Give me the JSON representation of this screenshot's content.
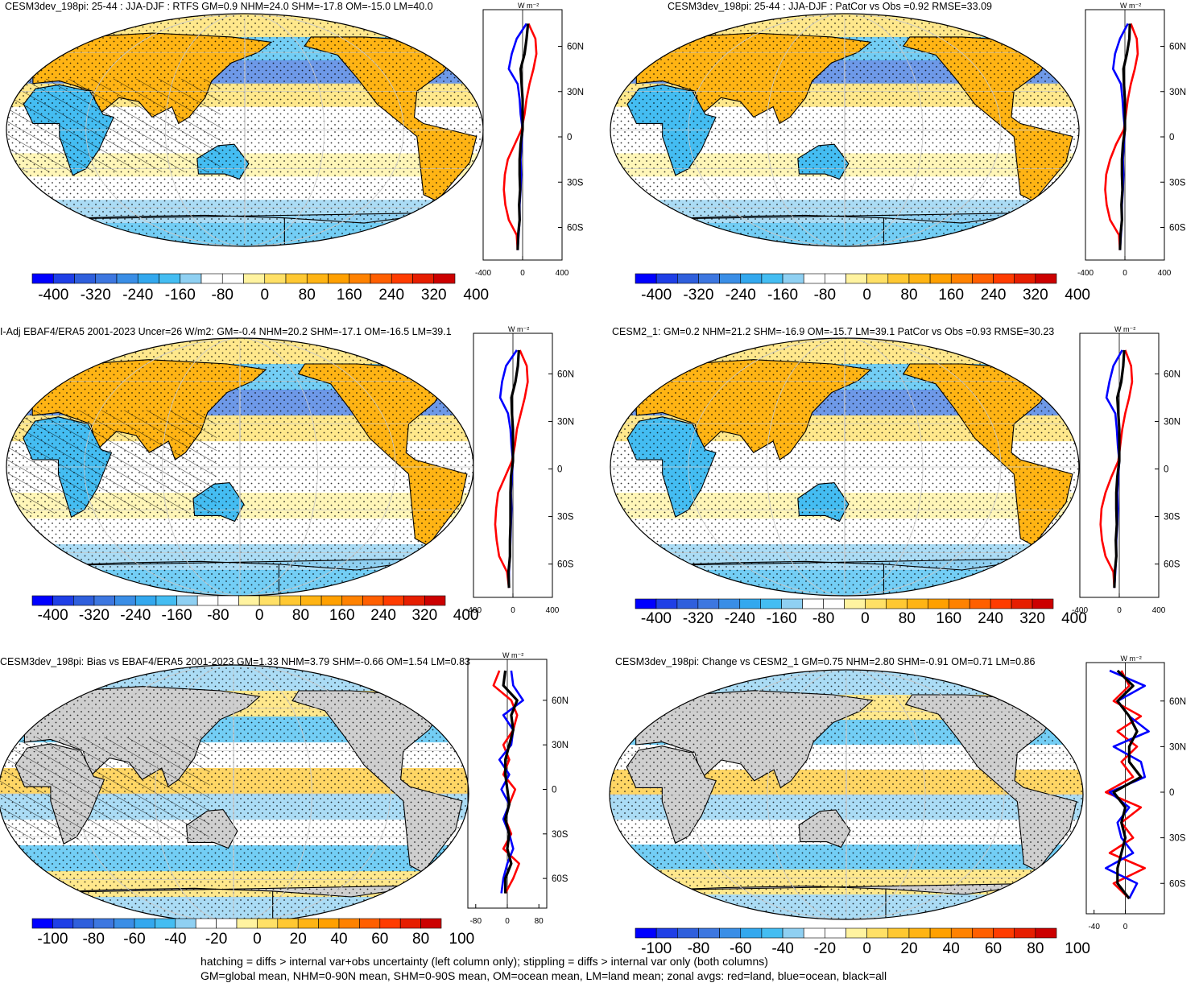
{
  "colors": {
    "ocean": "#ffffff",
    "land_masked": "#cfcfcf",
    "coast": "#000000",
    "zonal_land": "#ff0000",
    "zonal_ocean": "#0000ff",
    "zonal_all": "#000000",
    "colorbar": [
      "#0000ff",
      "#1f3fe6",
      "#2f5fdc",
      "#3d77e0",
      "#3a8ee6",
      "#33a8ee",
      "#44bdf2",
      "#8fd0f2",
      "#ffffff",
      "#ffffff",
      "#fff3a0",
      "#ffe066",
      "#ffc832",
      "#ffb414",
      "#ffa000",
      "#ff8200",
      "#ff5f00",
      "#ff3c00",
      "#e61e00",
      "#cc0000"
    ]
  },
  "panels": [
    {
      "id": "p1",
      "title": "CESM3dev_198pi: 25-44 : JJA-DJF : RTFS GM=0.9 NHM=24.0 SHM=-17.8 OM=-15.0 LM=40.0",
      "colorbar_ticks": [
        "-400",
        "-320",
        "-240",
        "-160",
        "-80",
        "0",
        "80",
        "160",
        "240",
        "320",
        "400"
      ],
      "zonal": {
        "unit": "W m⁻²",
        "xlim": [
          -400,
          400
        ],
        "xticks": [
          "-400",
          "0",
          "400"
        ],
        "lat_ticks": [
          "60N",
          "30N",
          "0",
          "30S",
          "60S"
        ],
        "lat": [
          75,
          65,
          55,
          45,
          35,
          25,
          15,
          5,
          -5,
          -15,
          -25,
          -35,
          -45,
          -55,
          -65,
          -75
        ],
        "land": [
          60,
          130,
          140,
          110,
          70,
          40,
          20,
          -10,
          -80,
          -150,
          -180,
          -190,
          -175,
          -140,
          -60,
          -50
        ],
        "ocean": [
          40,
          -60,
          -110,
          -140,
          -50,
          -30,
          -20,
          0,
          -10,
          -20,
          -15,
          -20,
          -30,
          -30,
          -40,
          -50
        ],
        "all": [
          55,
          40,
          20,
          -20,
          -10,
          0,
          0,
          0,
          -20,
          -30,
          -30,
          -25,
          -35,
          -30,
          -45,
          -50
        ]
      }
    },
    {
      "id": "p2",
      "title": "CESM3dev_198pi: 25-44 : JJA-DJF : PatCor vs Obs =0.92 RMSE=33.09",
      "colorbar_ticks": [
        "-400",
        "-320",
        "-240",
        "-160",
        "-80",
        "0",
        "80",
        "160",
        "240",
        "320",
        "400"
      ],
      "zonal": {
        "unit": "W m⁻²",
        "xlim": [
          -400,
          400
        ],
        "xticks": [
          "-400",
          "0",
          "400"
        ],
        "lat_ticks": [
          "60N",
          "30N",
          "0",
          "30S",
          "60S"
        ],
        "lat": [
          75,
          65,
          55,
          45,
          35,
          25,
          15,
          5,
          -5,
          -15,
          -25,
          -35,
          -45,
          -55,
          -65,
          -75
        ],
        "land": [
          60,
          120,
          130,
          100,
          60,
          30,
          10,
          -10,
          -90,
          -150,
          -190,
          -200,
          -185,
          -150,
          -60,
          -50
        ],
        "ocean": [
          30,
          -50,
          -100,
          -120,
          -40,
          -25,
          -15,
          0,
          -10,
          -20,
          -15,
          -20,
          -30,
          -30,
          -40,
          -50
        ],
        "all": [
          50,
          45,
          20,
          -15,
          -10,
          0,
          0,
          0,
          -20,
          -30,
          -30,
          -25,
          -35,
          -30,
          -45,
          -50
        ]
      }
    },
    {
      "id": "p3",
      "title": "I-Adj EBAF4/ERA5 2001-2023 Uncer=26 W/m2: GM=-0.4 NHM=20.2 SHM=-17.1 OM=-16.5 LM=39.1",
      "colorbar_ticks": [
        "-400",
        "-320",
        "-240",
        "-160",
        "-80",
        "0",
        "80",
        "160",
        "240",
        "320",
        "400"
      ],
      "zonal": {
        "unit": "W m⁻²",
        "xlim": [
          -400,
          400
        ],
        "xticks": [
          "-400",
          "0",
          "400"
        ],
        "lat_ticks": [
          "60N",
          "30N",
          "0",
          "30S",
          "60S"
        ],
        "lat": [
          75,
          65,
          55,
          45,
          35,
          25,
          15,
          5,
          -5,
          -15,
          -25,
          -35,
          -45,
          -55,
          -65,
          -75
        ],
        "land": [
          70,
          140,
          150,
          120,
          80,
          40,
          20,
          -10,
          -80,
          -150,
          -170,
          -180,
          -165,
          -140,
          -60,
          -40
        ],
        "ocean": [
          40,
          -70,
          -110,
          -130,
          -50,
          -25,
          -15,
          0,
          -10,
          -20,
          -15,
          -20,
          -25,
          -30,
          -40,
          -40
        ],
        "all": [
          60,
          50,
          25,
          -15,
          -10,
          0,
          0,
          0,
          -20,
          -25,
          -25,
          -25,
          -30,
          -30,
          -45,
          -40
        ]
      }
    },
    {
      "id": "p4",
      "title": "CESM2_1: GM=0.2 NHM=21.2 SHM=-16.9 OM=-15.7 LM=39.1 PatCor vs Obs =0.93 RMSE=30.23",
      "colorbar_ticks": [
        "-400",
        "-320",
        "-240",
        "-160",
        "-80",
        "0",
        "80",
        "160",
        "240",
        "320",
        "400"
      ],
      "zonal": {
        "unit": "W m⁻²",
        "xlim": [
          -400,
          400
        ],
        "xticks": [
          "-400",
          "0",
          "400"
        ],
        "lat_ticks": [
          "60N",
          "30N",
          "0",
          "30S",
          "60S"
        ],
        "lat": [
          75,
          65,
          55,
          45,
          35,
          25,
          15,
          5,
          -5,
          -15,
          -25,
          -35,
          -45,
          -55,
          -65,
          -75
        ],
        "land": [
          60,
          120,
          130,
          100,
          60,
          30,
          10,
          -10,
          -80,
          -140,
          -180,
          -190,
          -175,
          -140,
          -60,
          -50
        ],
        "ocean": [
          30,
          -60,
          -100,
          -130,
          -40,
          -25,
          -15,
          0,
          -10,
          -20,
          -15,
          -20,
          -30,
          -30,
          -40,
          -50
        ],
        "all": [
          50,
          40,
          20,
          -20,
          -10,
          0,
          0,
          0,
          -20,
          -30,
          -30,
          -25,
          -35,
          -30,
          -45,
          -50
        ]
      }
    },
    {
      "id": "p5",
      "title": "CESM3dev_198pi: Bias vs EBAF4/ERA5 2001-2023 GM=1.33 NHM=3.79 SHM=-0.66 OM=1.54 LM=0.83",
      "colorbar_ticks": [
        "-100",
        "-80",
        "-60",
        "-40",
        "-20",
        "0",
        "20",
        "40",
        "60",
        "80",
        "100"
      ],
      "zonal": {
        "unit": "W m⁻²",
        "xlim": [
          -100,
          100
        ],
        "xticks": [
          "-80",
          "0",
          "80"
        ],
        "lat_ticks": [
          "60N",
          "30N",
          "0",
          "30S",
          "60S"
        ],
        "lat": [
          80,
          70,
          60,
          50,
          40,
          30,
          20,
          10,
          0,
          -10,
          -20,
          -30,
          -40,
          -50,
          -60,
          -70
        ],
        "land": [
          -20,
          -35,
          10,
          25,
          15,
          -10,
          5,
          -10,
          20,
          5,
          -5,
          10,
          -10,
          30,
          15,
          -5
        ],
        "ocean": [
          10,
          15,
          40,
          -10,
          15,
          10,
          -20,
          5,
          -15,
          5,
          -10,
          5,
          15,
          0,
          -10,
          -15
        ],
        "all": [
          -5,
          -10,
          25,
          10,
          15,
          5,
          -5,
          -5,
          0,
          5,
          -5,
          5,
          0,
          10,
          -5,
          -5
        ]
      }
    },
    {
      "id": "p6",
      "title": "CESM3dev_198pi: Change vs CESM2_1 GM=0.75 NHM=2.80 SHM=-0.91 OM=0.71 LM=0.86",
      "colorbar_ticks": [
        "-100",
        "-80",
        "-60",
        "-40",
        "-20",
        "0",
        "20",
        "40",
        "60",
        "80",
        "100"
      ],
      "zonal": {
        "unit": "W m⁻²",
        "xlim": [
          -50,
          50
        ],
        "xticks": [
          "-40",
          "0"
        ],
        "lat_ticks": [
          "60N",
          "30N",
          "0",
          "30S",
          "60S"
        ],
        "lat": [
          80,
          70,
          60,
          50,
          40,
          30,
          20,
          10,
          0,
          -10,
          -20,
          -30,
          -40,
          -50,
          -60,
          -70
        ],
        "land": [
          -5,
          5,
          -15,
          20,
          -10,
          15,
          -5,
          10,
          -25,
          20,
          -5,
          10,
          -20,
          25,
          -15,
          5
        ],
        "ocean": [
          -20,
          25,
          -10,
          5,
          30,
          -15,
          20,
          25,
          -20,
          5,
          -10,
          -5,
          10,
          -25,
          15,
          5
        ],
        "all": [
          -10,
          10,
          -10,
          5,
          15,
          5,
          5,
          20,
          -15,
          0,
          -5,
          0,
          -5,
          -10,
          -10,
          5
        ]
      }
    }
  ],
  "footnote": {
    "line1": "hatching = diffs > internal var+obs uncertainty (left column only); stippling = diffs > internal var only (both columns)",
    "line2": "GM=global mean, NHM=0-90N mean, SHM=0-90S mean, OM=ocean mean, LM=land mean; zonal avgs: red=land, blue=ocean, black=all"
  }
}
